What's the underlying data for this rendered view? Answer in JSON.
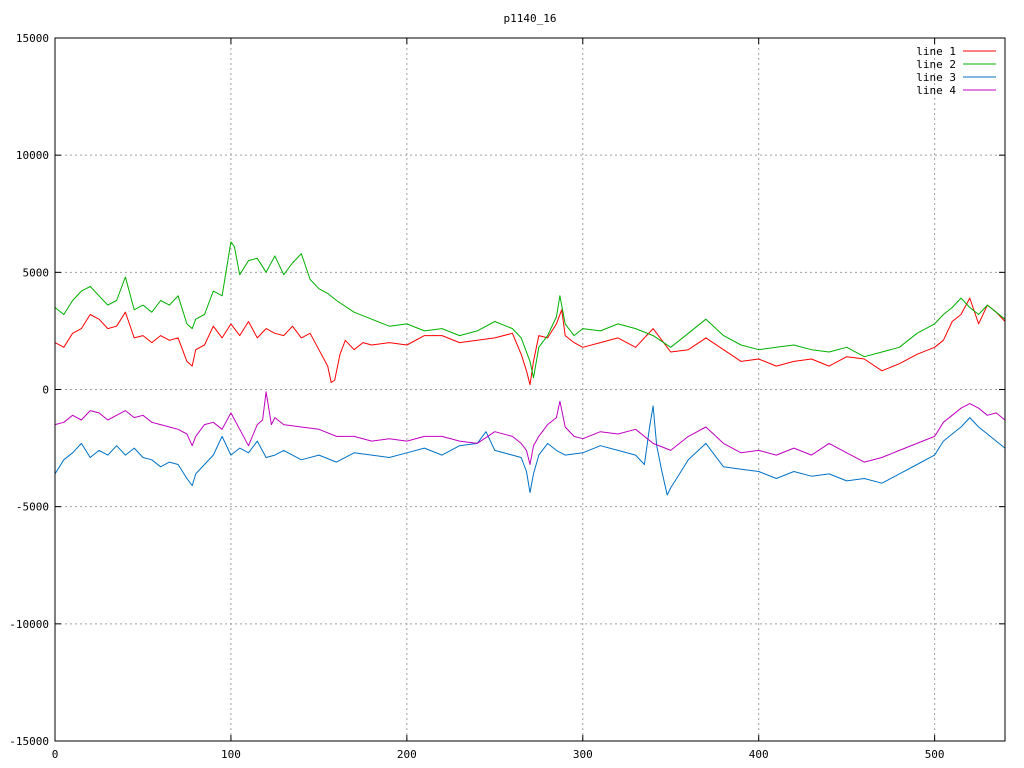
{
  "chart_data": {
    "type": "line",
    "title": "p1140_16",
    "xlabel": "",
    "ylabel": "",
    "xlim": [
      0,
      540
    ],
    "ylim": [
      -15000,
      15000
    ],
    "x_ticks": [
      0,
      100,
      200,
      300,
      400,
      500
    ],
    "y_ticks": [
      -15000,
      -10000,
      -5000,
      0,
      5000,
      10000,
      15000
    ],
    "grid": true,
    "legend_position": "top-right",
    "series": [
      {
        "name": "line 1",
        "color": "#ff0000",
        "x": [
          0,
          5,
          10,
          15,
          20,
          25,
          30,
          35,
          40,
          45,
          50,
          55,
          60,
          65,
          70,
          75,
          78,
          80,
          85,
          90,
          95,
          100,
          105,
          110,
          115,
          120,
          125,
          130,
          135,
          140,
          145,
          150,
          155,
          157,
          159,
          162,
          165,
          170,
          175,
          180,
          190,
          200,
          210,
          220,
          230,
          240,
          250,
          260,
          265,
          268,
          270,
          272,
          275,
          280,
          285,
          288,
          290,
          295,
          300,
          310,
          320,
          330,
          340,
          350,
          360,
          370,
          380,
          390,
          400,
          410,
          420,
          430,
          440,
          450,
          460,
          470,
          480,
          490,
          500,
          505,
          510,
          515,
          520,
          525,
          530,
          535,
          540
        ],
        "y": [
          2000,
          1800,
          2400,
          2600,
          3200,
          3000,
          2600,
          2700,
          3300,
          2200,
          2300,
          2000,
          2300,
          2100,
          2200,
          1200,
          1000,
          1700,
          1900,
          2700,
          2200,
          2800,
          2300,
          2900,
          2200,
          2600,
          2400,
          2300,
          2700,
          2200,
          2400,
          1700,
          1000,
          300,
          400,
          1500,
          2100,
          1700,
          2000,
          1900,
          2000,
          1900,
          2300,
          2300,
          2000,
          2100,
          2200,
          2400,
          1500,
          800,
          200,
          1200,
          2300,
          2200,
          2800,
          3400,
          2300,
          2000,
          1800,
          2000,
          2200,
          1800,
          2600,
          1600,
          1700,
          2200,
          1700,
          1200,
          1300,
          1000,
          1200,
          1300,
          1000,
          1400,
          1300,
          800,
          1100,
          1500,
          1800,
          2100,
          2900,
          3200,
          3900,
          2800,
          3600,
          3300,
          2900
        ]
      },
      {
        "name": "line 2",
        "color": "#00b000",
        "x": [
          0,
          5,
          10,
          15,
          20,
          25,
          30,
          35,
          40,
          45,
          50,
          55,
          60,
          65,
          70,
          75,
          78,
          80,
          85,
          90,
          95,
          100,
          102,
          105,
          110,
          115,
          120,
          125,
          130,
          135,
          140,
          145,
          150,
          155,
          160,
          170,
          180,
          190,
          200,
          210,
          220,
          230,
          240,
          250,
          260,
          265,
          270,
          272,
          275,
          280,
          285,
          287,
          290,
          295,
          300,
          310,
          320,
          330,
          340,
          350,
          360,
          370,
          380,
          390,
          400,
          410,
          420,
          430,
          440,
          450,
          460,
          470,
          480,
          490,
          500,
          505,
          510,
          515,
          520,
          525,
          530,
          535,
          540
        ],
        "y": [
          3500,
          3200,
          3800,
          4200,
          4400,
          4000,
          3600,
          3800,
          4800,
          3400,
          3600,
          3300,
          3800,
          3600,
          4000,
          2800,
          2600,
          3000,
          3200,
          4200,
          4000,
          6300,
          6100,
          4900,
          5500,
          5600,
          5000,
          5700,
          4900,
          5400,
          5800,
          4700,
          4300,
          4100,
          3800,
          3300,
          3000,
          2700,
          2800,
          2500,
          2600,
          2300,
          2500,
          2900,
          2600,
          2200,
          1200,
          500,
          1800,
          2300,
          3100,
          4000,
          2800,
          2300,
          2600,
          2500,
          2800,
          2600,
          2300,
          1800,
          2400,
          3000,
          2300,
          1900,
          1700,
          1800,
          1900,
          1700,
          1600,
          1800,
          1400,
          1600,
          1800,
          2400,
          2800,
          3200,
          3500,
          3900,
          3500,
          3200,
          3600,
          3300,
          3000
        ]
      },
      {
        "name": "line 3",
        "color": "#0072c6",
        "x": [
          0,
          5,
          10,
          15,
          20,
          25,
          30,
          35,
          40,
          45,
          50,
          55,
          60,
          65,
          70,
          75,
          78,
          80,
          85,
          90,
          95,
          100,
          105,
          110,
          115,
          120,
          125,
          130,
          140,
          150,
          160,
          170,
          180,
          190,
          200,
          210,
          220,
          230,
          240,
          245,
          250,
          260,
          265,
          268,
          270,
          272,
          275,
          280,
          285,
          290,
          300,
          310,
          320,
          330,
          335,
          338,
          340,
          342,
          345,
          348,
          350,
          355,
          360,
          370,
          380,
          390,
          400,
          410,
          420,
          430,
          440,
          450,
          460,
          470,
          480,
          490,
          500,
          505,
          510,
          515,
          520,
          525,
          530,
          535,
          540
        ],
        "y": [
          -3600,
          -3000,
          -2700,
          -2300,
          -2900,
          -2600,
          -2800,
          -2400,
          -2800,
          -2500,
          -2900,
          -3000,
          -3300,
          -3100,
          -3200,
          -3800,
          -4100,
          -3600,
          -3200,
          -2800,
          -2000,
          -2800,
          -2500,
          -2700,
          -2200,
          -2900,
          -2800,
          -2600,
          -3000,
          -2800,
          -3100,
          -2700,
          -2800,
          -2900,
          -2700,
          -2500,
          -2800,
          -2400,
          -2300,
          -1800,
          -2600,
          -2800,
          -2900,
          -3500,
          -4400,
          -3600,
          -2800,
          -2300,
          -2600,
          -2800,
          -2700,
          -2400,
          -2600,
          -2800,
          -3200,
          -1600,
          -700,
          -2400,
          -3500,
          -4500,
          -4200,
          -3600,
          -3000,
          -2300,
          -3300,
          -3400,
          -3500,
          -3800,
          -3500,
          -3700,
          -3600,
          -3900,
          -3800,
          -4000,
          -3600,
          -3200,
          -2800,
          -2200,
          -1900,
          -1600,
          -1200,
          -1600,
          -1900,
          -2200,
          -2500
        ]
      },
      {
        "name": "line 4",
        "color": "#c000c0",
        "x": [
          0,
          5,
          10,
          15,
          20,
          25,
          30,
          35,
          40,
          45,
          50,
          55,
          60,
          65,
          70,
          75,
          78,
          80,
          85,
          90,
          95,
          100,
          105,
          110,
          115,
          118,
          120,
          123,
          125,
          130,
          140,
          150,
          160,
          170,
          180,
          190,
          200,
          210,
          220,
          230,
          240,
          250,
          260,
          265,
          268,
          270,
          272,
          275,
          280,
          285,
          287,
          290,
          295,
          300,
          310,
          320,
          330,
          340,
          350,
          360,
          370,
          380,
          390,
          400,
          410,
          420,
          430,
          440,
          450,
          460,
          470,
          480,
          490,
          500,
          505,
          510,
          515,
          520,
          525,
          530,
          535,
          540
        ],
        "y": [
          -1500,
          -1400,
          -1100,
          -1300,
          -900,
          -1000,
          -1300,
          -1100,
          -900,
          -1200,
          -1100,
          -1400,
          -1500,
          -1600,
          -1700,
          -1900,
          -2400,
          -2000,
          -1500,
          -1400,
          -1700,
          -1000,
          -1700,
          -2400,
          -1500,
          -1300,
          -100,
          -1500,
          -1200,
          -1500,
          -1600,
          -1700,
          -2000,
          -2000,
          -2200,
          -2100,
          -2200,
          -2000,
          -2000,
          -2200,
          -2300,
          -1800,
          -2000,
          -2300,
          -2600,
          -3200,
          -2400,
          -2000,
          -1500,
          -1200,
          -500,
          -1600,
          -2000,
          -2100,
          -1800,
          -1900,
          -1700,
          -2300,
          -2600,
          -2000,
          -1600,
          -2300,
          -2700,
          -2600,
          -2800,
          -2500,
          -2800,
          -2300,
          -2700,
          -3100,
          -2900,
          -2600,
          -2300,
          -2000,
          -1400,
          -1100,
          -800,
          -600,
          -800,
          -1100,
          -1000,
          -1300
        ]
      }
    ]
  }
}
